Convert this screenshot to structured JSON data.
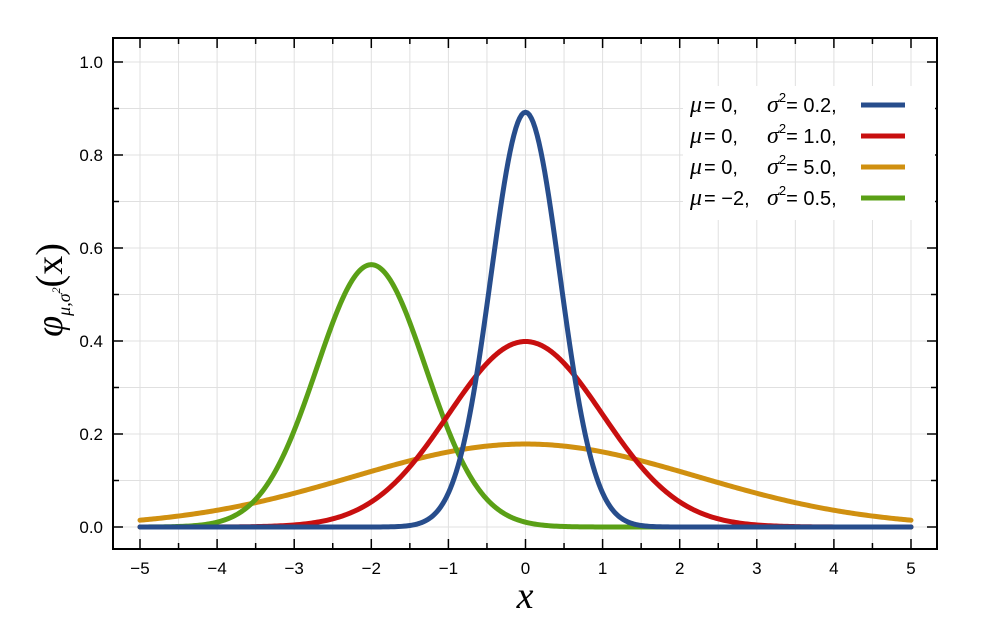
{
  "chart_data": {
    "type": "line",
    "xlabel": "x",
    "ylabel": {
      "main": "φ",
      "sub": "μ,σ",
      "sup": "2",
      "arg": "(x)"
    },
    "xlim": [
      -5,
      5
    ],
    "ylim": [
      0,
      1
    ],
    "xticks": [
      -5,
      -4,
      -3,
      -2,
      -1,
      0,
      1,
      2,
      3,
      4,
      5
    ],
    "xtick_labels": [
      "−5",
      "−4",
      "−3",
      "−2",
      "−1",
      "0",
      "1",
      "2",
      "3",
      "4",
      "5"
    ],
    "yticks": [
      0.0,
      0.2,
      0.4,
      0.6,
      0.8,
      1.0
    ],
    "ytick_labels": [
      "0.0",
      "0.2",
      "0.4",
      "0.6",
      "0.8",
      "1.0"
    ],
    "grid": true,
    "legend_position": "top-right",
    "series": [
      {
        "mu": 0,
        "sigma2": 0.2,
        "color": "#274d8c",
        "mu_text": "0,",
        "sigma_text": "0.2,",
        "peak": {
          "x": 0,
          "y": 0.892
        }
      },
      {
        "mu": 0,
        "sigma2": 1.0,
        "color": "#c80f0f",
        "mu_text": "0,",
        "sigma_text": "1.0,",
        "peak": {
          "x": 0,
          "y": 0.399
        }
      },
      {
        "mu": 0,
        "sigma2": 5.0,
        "color": "#d09010",
        "mu_text": "0,",
        "sigma_text": "5.0,",
        "peak": {
          "x": 0,
          "y": 0.178
        }
      },
      {
        "mu": -2,
        "sigma2": 0.5,
        "color": "#5aa016",
        "mu_text": "−2,",
        "sigma_text": "0.5,",
        "peak": {
          "x": -2,
          "y": 0.564
        }
      }
    ]
  }
}
